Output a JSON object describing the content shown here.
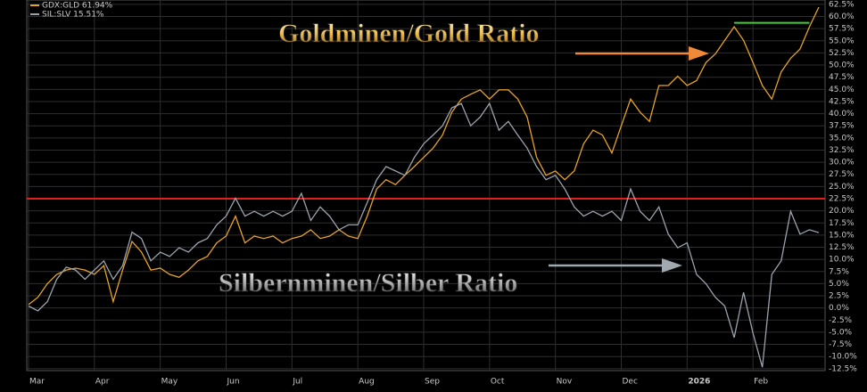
{
  "chart_data": {
    "type": "line",
    "categories": [
      "Mar",
      null,
      null,
      null,
      null,
      null,
      null,
      "Apr",
      null,
      null,
      null,
      null,
      null,
      null,
      "May",
      null,
      null,
      null,
      null,
      null,
      null,
      "Jun",
      null,
      null,
      null,
      null,
      null,
      null,
      "Jul",
      null,
      null,
      null,
      null,
      null,
      null,
      "Aug",
      null,
      null,
      null,
      null,
      null,
      null,
      "Sep",
      null,
      null,
      null,
      null,
      null,
      null,
      "Oct",
      null,
      null,
      null,
      null,
      null,
      null,
      "Nov",
      null,
      null,
      null,
      null,
      null,
      null,
      "Dec",
      null,
      null,
      null,
      null,
      null,
      null,
      "2026",
      null,
      null,
      null,
      null,
      null,
      null,
      "Feb",
      null,
      null,
      null,
      null,
      null,
      null,
      null
    ],
    "series": [
      {
        "name": "GDX:GLD 61.94%",
        "color": "#e8a22a",
        "values": [
          0.7,
          2.2,
          5,
          6.9,
          7.8,
          8.2,
          7.8,
          6.9,
          8.7,
          1.3,
          7.8,
          13.7,
          11.5,
          7.8,
          8.2,
          6.9,
          6.3,
          7.8,
          9.7,
          10.6,
          13.4,
          14.8,
          18.9,
          13.4,
          14.8,
          14.3,
          14.8,
          13.4,
          14.3,
          14.8,
          16.1,
          14.3,
          14.8,
          16.1,
          14.8,
          14.3,
          18.9,
          24.5,
          26.4,
          25.4,
          27.3,
          29.1,
          31,
          32.9,
          35.6,
          40.3,
          43,
          44,
          44.9,
          43,
          44.9,
          44.9,
          43,
          39.3,
          31,
          27.3,
          28.2,
          26.4,
          28.2,
          33.8,
          36.6,
          35.6,
          31.9,
          37.5,
          43,
          40.3,
          38.4,
          45.8,
          45.8,
          47.7,
          45.8,
          46.8,
          50.5,
          52.3,
          55.1,
          57.9,
          55.1,
          50.5,
          45.8,
          43,
          48.6,
          51.4,
          53.3,
          57.9,
          61.94
        ]
      },
      {
        "name": "SIL:SLV 15.51%",
        "color": "#9aa3ad",
        "values": [
          0.4,
          -0.6,
          1.3,
          5.9,
          8.4,
          7.8,
          5.9,
          7.8,
          9.7,
          5.9,
          8.7,
          15.6,
          14.3,
          9.7,
          11.5,
          10.6,
          12.4,
          11.5,
          13.4,
          14.3,
          17.1,
          18.9,
          22.6,
          18.9,
          19.9,
          18.9,
          19.9,
          18.9,
          19.9,
          23.6,
          18,
          20.8,
          18.9,
          16.1,
          17.1,
          17.1,
          21.7,
          26.4,
          29.1,
          28.2,
          27.3,
          31,
          33.8,
          35.6,
          37.5,
          41.2,
          42.1,
          37.5,
          39.3,
          42.1,
          36.6,
          38.4,
          35.6,
          32.9,
          29.1,
          26.4,
          27.3,
          24.5,
          20.8,
          18.9,
          19.9,
          18.9,
          19.9,
          18,
          24.5,
          19.9,
          18,
          20.8,
          15.2,
          12.4,
          13.4,
          6.9,
          5,
          2.2,
          0.4,
          -6.1,
          3.2,
          -5.2,
          -12.2,
          6.9,
          9.7,
          19.9,
          15.2,
          16.1,
          15.51
        ]
      }
    ],
    "ylim": [
      -12.9,
      63.4
    ],
    "yticks": [
      {
        "value": 62.5,
        "label": "62.5%"
      },
      {
        "value": 60,
        "label": "60.0%"
      },
      {
        "value": 57.5,
        "label": "57.5%"
      },
      {
        "value": 55,
        "label": "55.0%"
      },
      {
        "value": 52.5,
        "label": "52.5%"
      },
      {
        "value": 50,
        "label": "50.0%"
      },
      {
        "value": 47.5,
        "label": "47.5%"
      },
      {
        "value": 45,
        "label": "45.0%"
      },
      {
        "value": 42.5,
        "label": "42.5%"
      },
      {
        "value": 40,
        "label": "40.0%"
      },
      {
        "value": 37.5,
        "label": "37.5%"
      },
      {
        "value": 35,
        "label": "35.0%"
      },
      {
        "value": 32.5,
        "label": "32.5%"
      },
      {
        "value": 30,
        "label": "30.0%"
      },
      {
        "value": 27.5,
        "label": "27.5%"
      },
      {
        "value": 25,
        "label": "25.0%"
      },
      {
        "value": 22.5,
        "label": "22.5%"
      },
      {
        "value": 20,
        "label": "20.0%"
      },
      {
        "value": 17.5,
        "label": "17.5%"
      },
      {
        "value": 15,
        "label": "15.0%"
      },
      {
        "value": 12.5,
        "label": "12.5%"
      },
      {
        "value": 10,
        "label": "10.0%"
      },
      {
        "value": 7.5,
        "label": "7.5%"
      },
      {
        "value": 5,
        "label": "5.0%"
      },
      {
        "value": 2.5,
        "label": "2.5%"
      },
      {
        "value": 0,
        "label": "0.0%"
      },
      {
        "value": -2.5,
        "label": "-2.5%"
      },
      {
        "value": -5,
        "label": "-5.0%"
      },
      {
        "value": -7.5,
        "label": "-7.5%"
      },
      {
        "value": -10,
        "label": "-10.0%"
      },
      {
        "value": -12.5,
        "label": "-12.5%"
      }
    ],
    "grid": true,
    "reference_lines": [
      {
        "value": 22.5,
        "color": "#e0201c"
      },
      {
        "value": 58.7,
        "color": "#3fcf2f"
      }
    ],
    "annotations": [
      "Goldminen/Gold Ratio",
      "Silbernminen/Silber Ratio"
    ]
  }
}
